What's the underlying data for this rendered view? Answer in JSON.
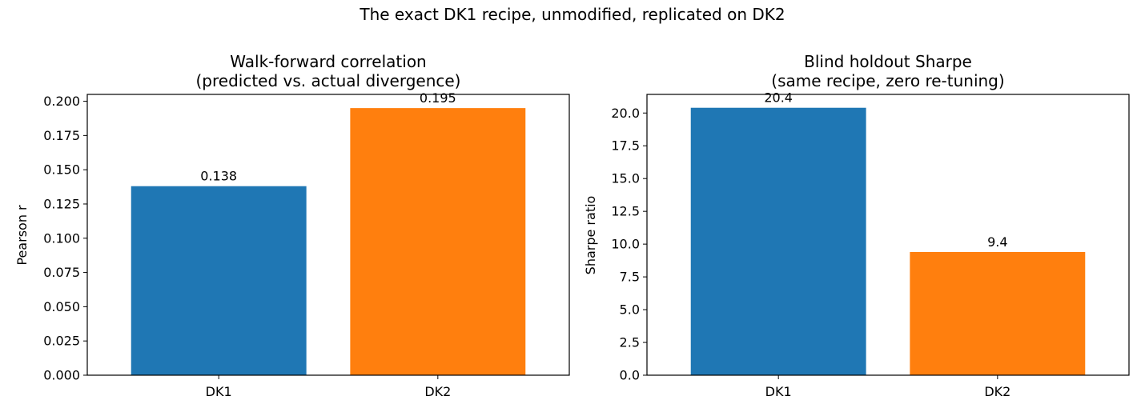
{
  "suptitle": "The exact DK1 recipe, unmodified, replicated on DK2",
  "colors": {
    "DK1": "#1f77b4",
    "DK2": "#ff7f0e"
  },
  "chart_data": [
    {
      "type": "bar",
      "title_line1": "Walk-forward correlation",
      "title_line2": "(predicted vs. actual divergence)",
      "xlabel": "",
      "ylabel": "Pearson r",
      "categories": [
        "DK1",
        "DK2"
      ],
      "values": [
        0.138,
        0.195
      ],
      "value_labels": [
        "0.138",
        "0.195"
      ],
      "ylim": [
        0,
        0.205
      ],
      "yticks": [
        0,
        0.025,
        0.05,
        0.075,
        0.1,
        0.125,
        0.15,
        0.175,
        0.2
      ],
      "ytick_labels": [
        "0.000",
        "0.025",
        "0.050",
        "0.075",
        "0.100",
        "0.125",
        "0.150",
        "0.175",
        "0.200"
      ],
      "grid": false
    },
    {
      "type": "bar",
      "title_line1": "Blind holdout Sharpe",
      "title_line2": "(same recipe, zero re-tuning)",
      "xlabel": "",
      "ylabel": "Sharpe ratio",
      "categories": [
        "DK1",
        "DK2"
      ],
      "values": [
        20.4,
        9.4
      ],
      "value_labels": [
        "20.4",
        "9.4"
      ],
      "ylim": [
        0,
        21.42
      ],
      "yticks": [
        0,
        2.5,
        5,
        7.5,
        10,
        12.5,
        15,
        17.5,
        20
      ],
      "ytick_labels": [
        "0.0",
        "2.5",
        "5.0",
        "7.5",
        "10.0",
        "12.5",
        "15.0",
        "17.5",
        "20.0"
      ],
      "grid": false
    }
  ]
}
